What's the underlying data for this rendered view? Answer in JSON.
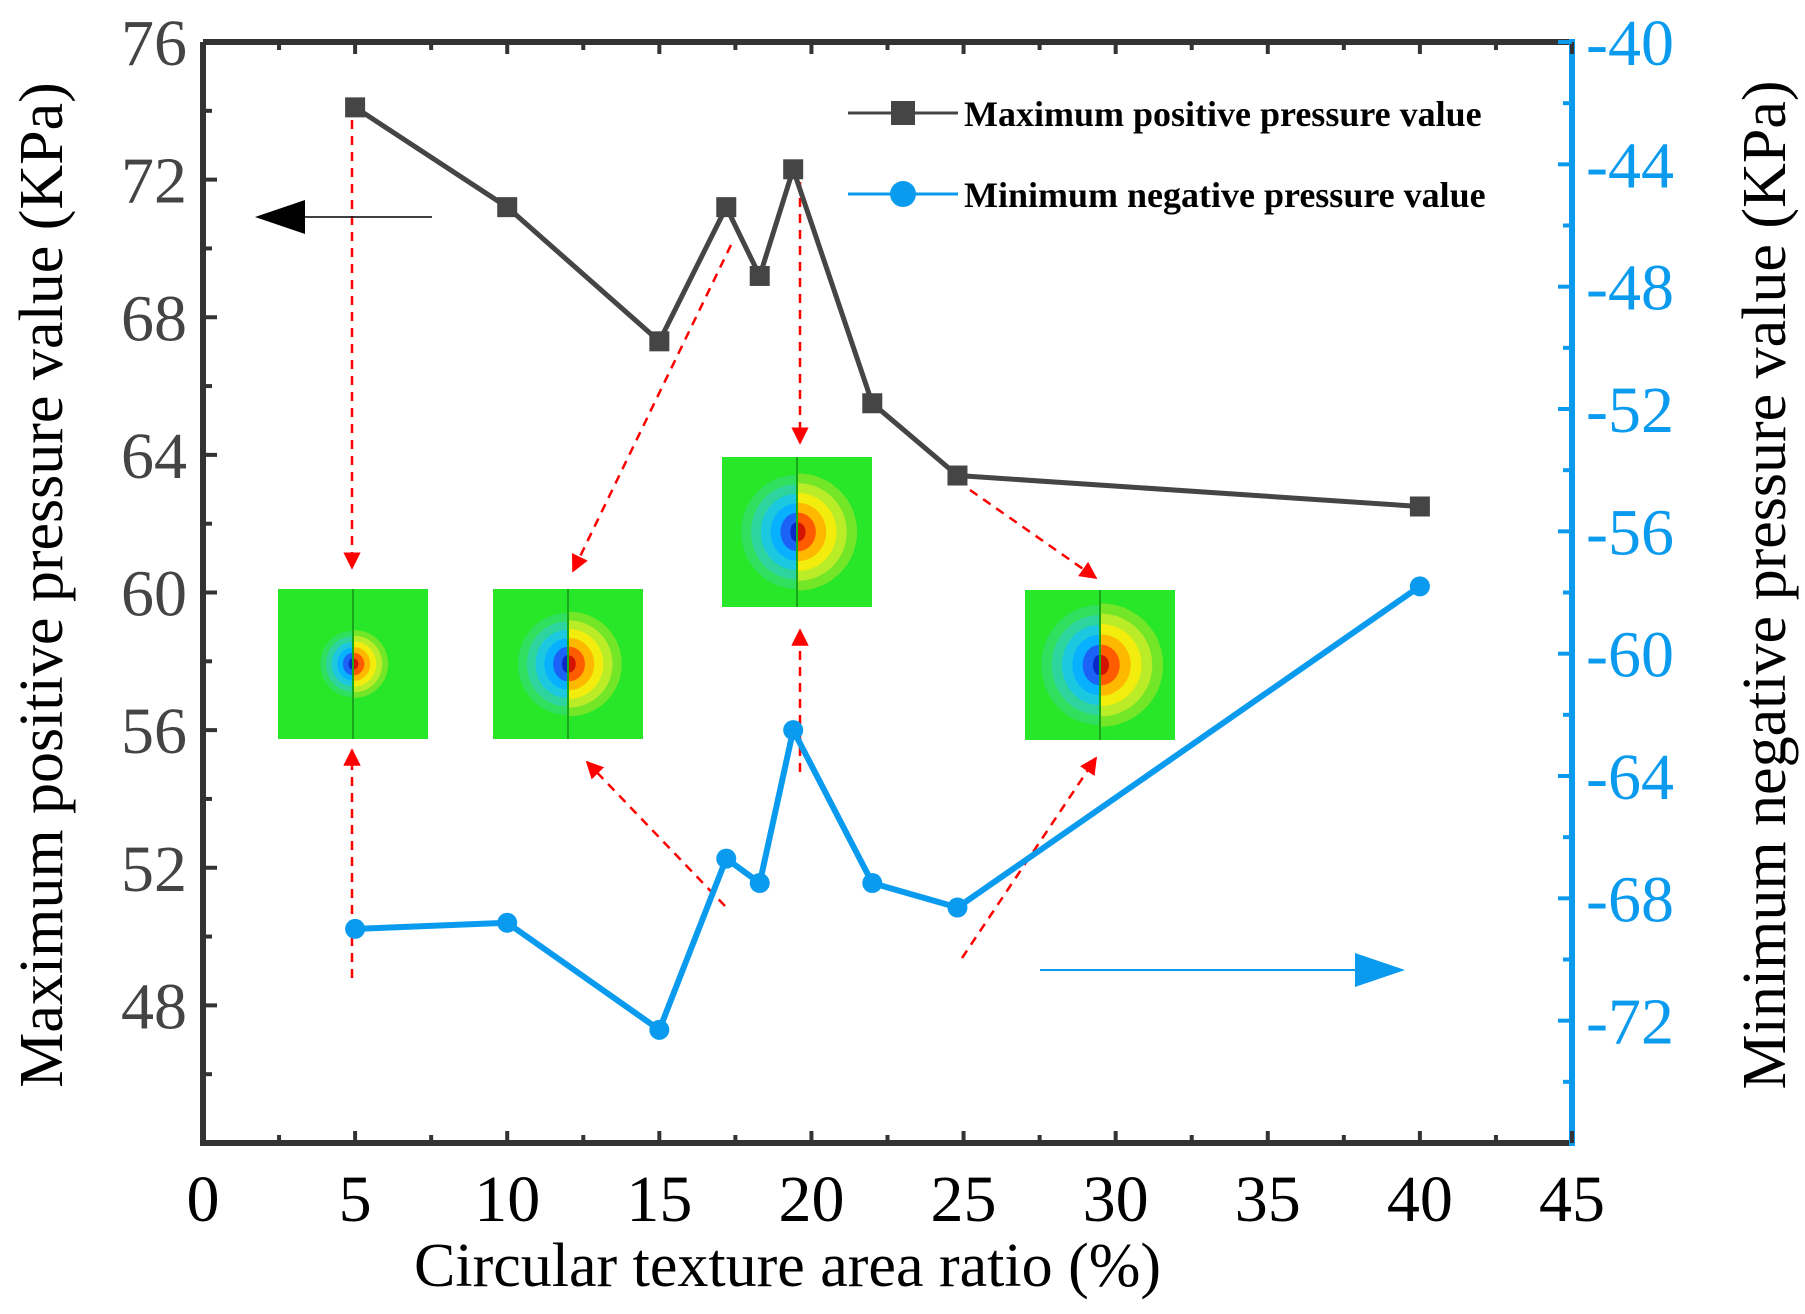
{
  "chart_data": {
    "type": "line",
    "xlabel": "Circular texture area ratio (%)",
    "ylabel_left": "Maximum positive pressure value (KPa)",
    "ylabel_right": "Minimum negative pressure value (KPa)",
    "xlim": [
      0,
      45
    ],
    "ylim_left": [
      44,
      76
    ],
    "ylim_right": [
      -76,
      -40
    ],
    "x_ticks": [
      0,
      5,
      10,
      15,
      20,
      25,
      30,
      35,
      40,
      45
    ],
    "y_ticks_left": [
      48,
      52,
      56,
      60,
      64,
      68,
      72,
      76
    ],
    "y_ticks_right": [
      -72,
      -68,
      -64,
      -60,
      -56,
      -52,
      -48,
      -44,
      -40
    ],
    "legend_position": "top-right",
    "colors": {
      "series1": "#454545",
      "series2": "#0A9BEF",
      "annotation_arrow": "#FF0000"
    },
    "series": [
      {
        "name": "Maximum positive pressure value",
        "axis": "left",
        "marker": "square",
        "x": [
          5,
          10,
          15,
          17.2,
          18.3,
          19.4,
          22,
          24.8,
          40
        ],
        "values": [
          74.1,
          71.2,
          67.3,
          71.2,
          69.2,
          72.3,
          65.5,
          63.4,
          62.5
        ]
      },
      {
        "name": "Minimum negative pressure value",
        "axis": "right",
        "marker": "circle",
        "x": [
          5,
          10,
          15,
          17.2,
          18.3,
          19.4,
          22,
          24.8,
          40
        ],
        "values": [
          -69.0,
          -68.8,
          -72.3,
          -66.7,
          -67.5,
          -62.5,
          -67.5,
          -68.3,
          -57.8
        ]
      }
    ],
    "insets": [
      {
        "name": "contour-5",
        "texture_ratio": 5,
        "scale": 0.55
      },
      {
        "name": "contour-12",
        "texture_ratio": 12,
        "scale": 0.85
      },
      {
        "name": "contour-19",
        "texture_ratio": 19.4,
        "scale": 0.95
      },
      {
        "name": "contour-29",
        "texture_ratio": 29,
        "scale": 1.0
      }
    ]
  }
}
